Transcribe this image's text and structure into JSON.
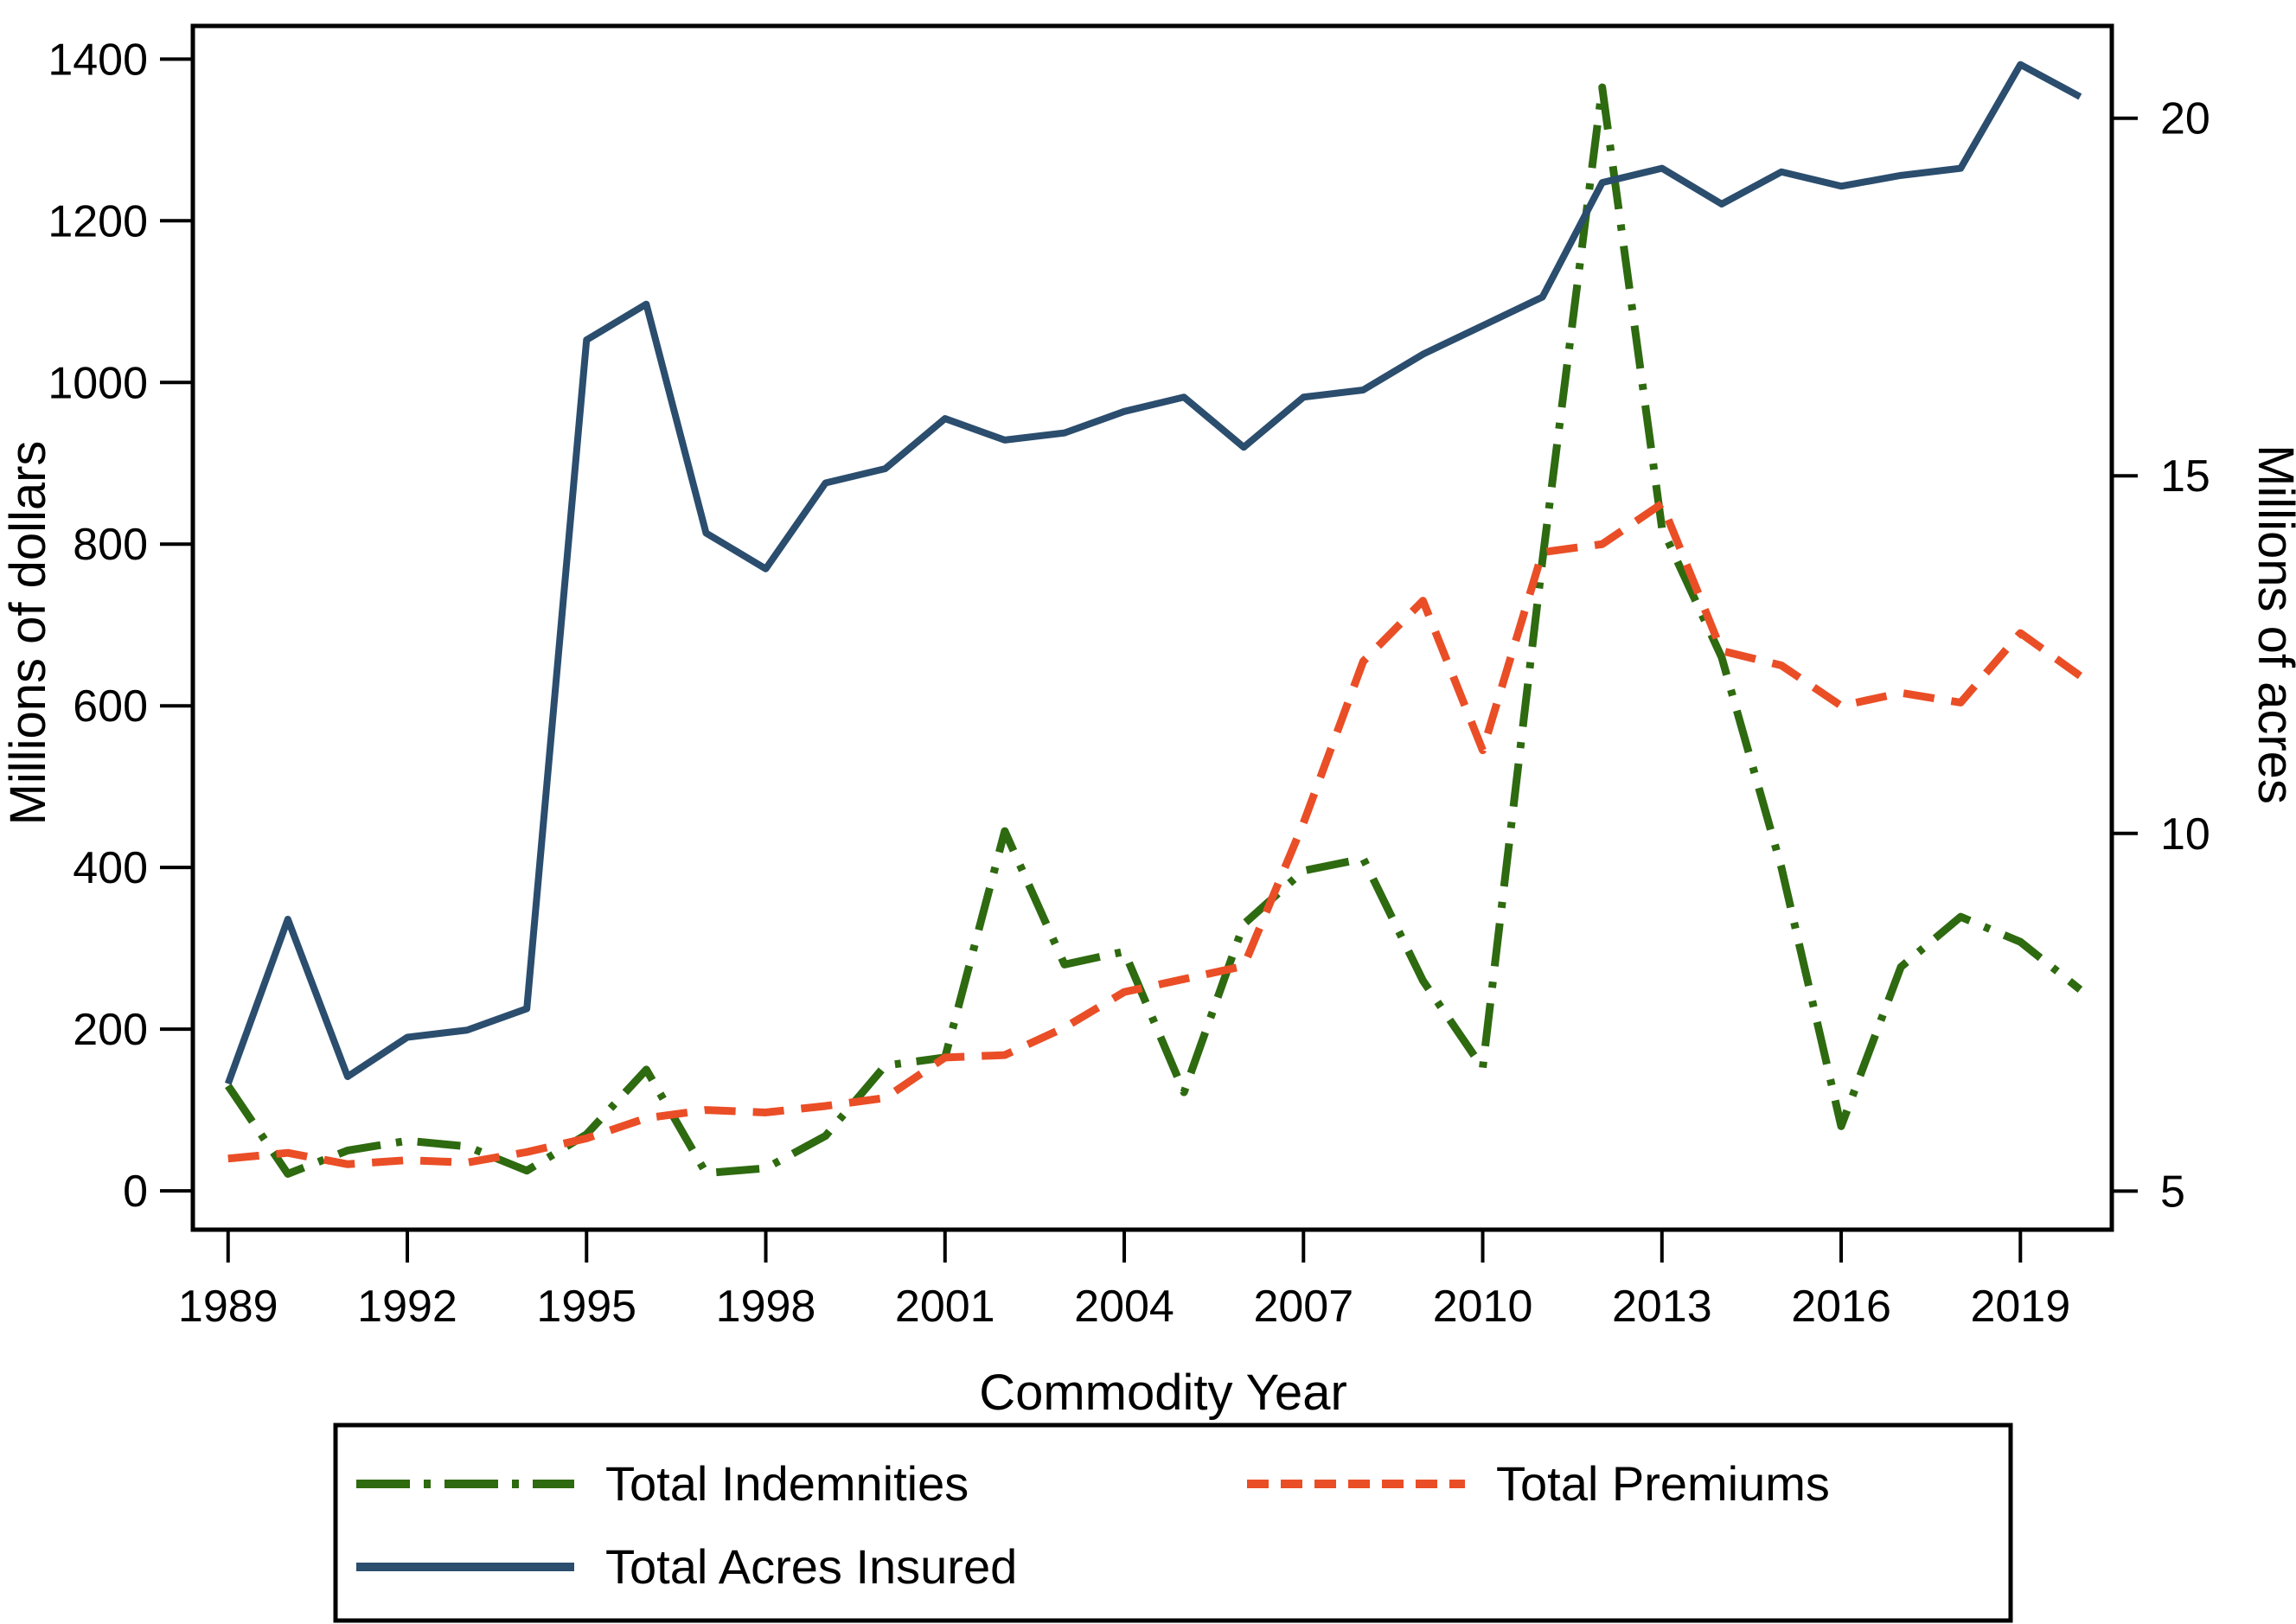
{
  "chart_data": {
    "type": "line",
    "title": "",
    "xlabel": "Commodity Year",
    "ylabel_left": "Millions of dollars",
    "ylabel_right": "Millions of acres",
    "grid": false,
    "legend_position": "bottom",
    "years": [
      1989,
      1990,
      1991,
      1992,
      1993,
      1994,
      1995,
      1996,
      1997,
      1998,
      1999,
      2000,
      2001,
      2002,
      2003,
      2004,
      2005,
      2006,
      2007,
      2008,
      2009,
      2010,
      2011,
      2012,
      2013,
      2014,
      2015,
      2016,
      2017,
      2018,
      2019,
      2020
    ],
    "x_ticks": [
      1989,
      1992,
      1995,
      1998,
      2001,
      2004,
      2007,
      2010,
      2013,
      2016,
      2019
    ],
    "y_left_ticks": [
      0,
      200,
      400,
      600,
      800,
      1000,
      1200,
      1400
    ],
    "y_right_ticks": [
      5,
      10,
      15,
      20
    ],
    "x_range": [
      1988.41,
      2020.53
    ],
    "y_left_range": [
      -48,
      1441
    ],
    "y_right_range": [
      4.46,
      21.29
    ],
    "series": [
      {
        "id": "total-indemnities",
        "name": "Total Indemnities",
        "axis": "left",
        "color": "#2e6a10",
        "style": "dashdot",
        "values": [
          130,
          21,
          50,
          62,
          55,
          25,
          70,
          150,
          22,
          28,
          68,
          155,
          165,
          445,
          280,
          296,
          122,
          330,
          396,
          411,
          260,
          152,
          780,
          1365,
          820,
          660,
          400,
          80,
          277,
          339,
          308,
          249
        ]
      },
      {
        "id": "total-premiums",
        "name": "Total Premiums",
        "axis": "left",
        "color": "#ea4e26",
        "style": "dash",
        "values": [
          40,
          47,
          33,
          38,
          35,
          48,
          65,
          90,
          100,
          97,
          105,
          115,
          165,
          168,
          202,
          246,
          262,
          278,
          455,
          655,
          730,
          545,
          790,
          800,
          850,
          668,
          650,
          600,
          616,
          604,
          690,
          637
        ]
      },
      {
        "id": "total-acres-insured",
        "name": "Total Acres Insured",
        "axis": "right",
        "color": "#2b4d6e",
        "style": "solid",
        "values": [
          6.5,
          8.8,
          6.6,
          7.15,
          7.25,
          7.55,
          16.9,
          17.4,
          14.2,
          13.7,
          14.9,
          15.1,
          15.8,
          15.5,
          15.6,
          15.9,
          16.1,
          15.4,
          16.1,
          16.2,
          16.7,
          17.1,
          17.5,
          19.1,
          19.3,
          18.8,
          19.25,
          19.05,
          19.2,
          19.3,
          20.75,
          20.3
        ]
      }
    ]
  },
  "legend": {
    "items": [
      {
        "label": "Total Indemnities",
        "series": 0
      },
      {
        "label": "Total Premiums",
        "series": 1
      },
      {
        "label": "Total Acres Insured",
        "series": 2
      }
    ]
  }
}
